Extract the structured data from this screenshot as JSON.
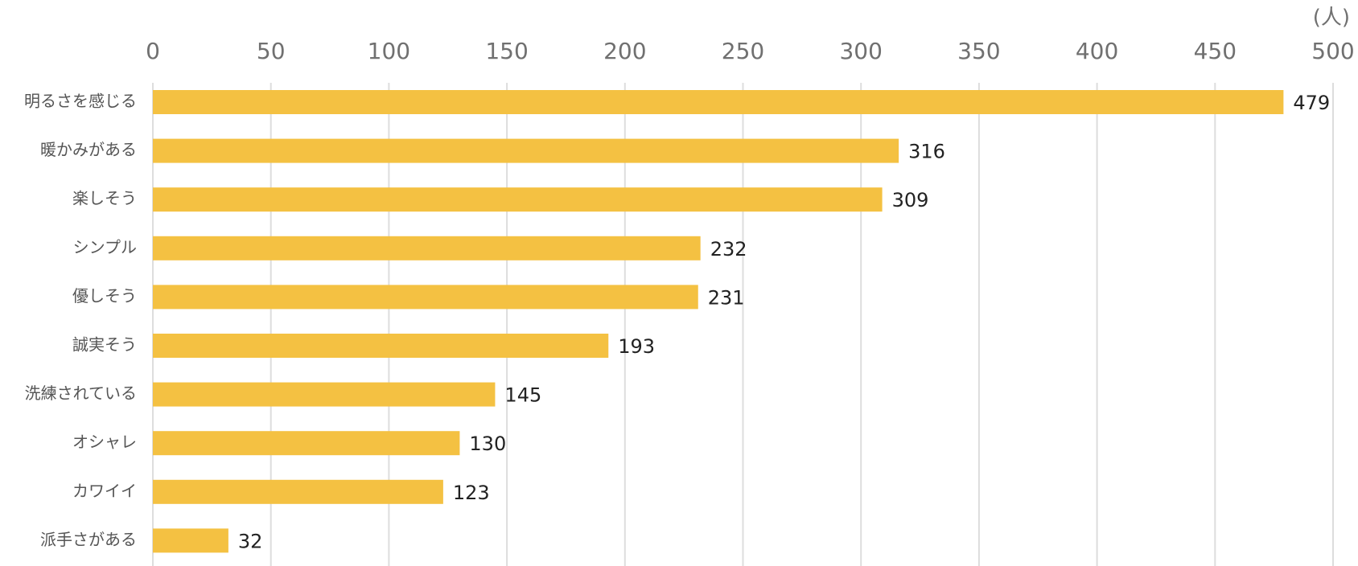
{
  "chart_data": {
    "type": "bar",
    "orientation": "horizontal",
    "unit_label": "(人)",
    "categories": [
      "明るさを感じる",
      "暖かみがある",
      "楽しそう",
      "シンプル",
      "優しそう",
      "誠実そう",
      "洗練されている",
      "オシャレ",
      "カワイイ",
      "派手さがある"
    ],
    "values": [
      479,
      316,
      309,
      232,
      231,
      193,
      145,
      130,
      123,
      32
    ],
    "xlim": [
      0,
      500
    ],
    "xticks": [
      0,
      50,
      100,
      150,
      200,
      250,
      300,
      350,
      400,
      450,
      500
    ],
    "tick_labels": [
      "0",
      "50",
      "100",
      "150",
      "200",
      "250",
      "300",
      "350",
      "400",
      "450",
      "500"
    ],
    "grid": true,
    "data_labels": true,
    "bar_color": "#F4C142",
    "grid_color": "#DDDDDD"
  }
}
